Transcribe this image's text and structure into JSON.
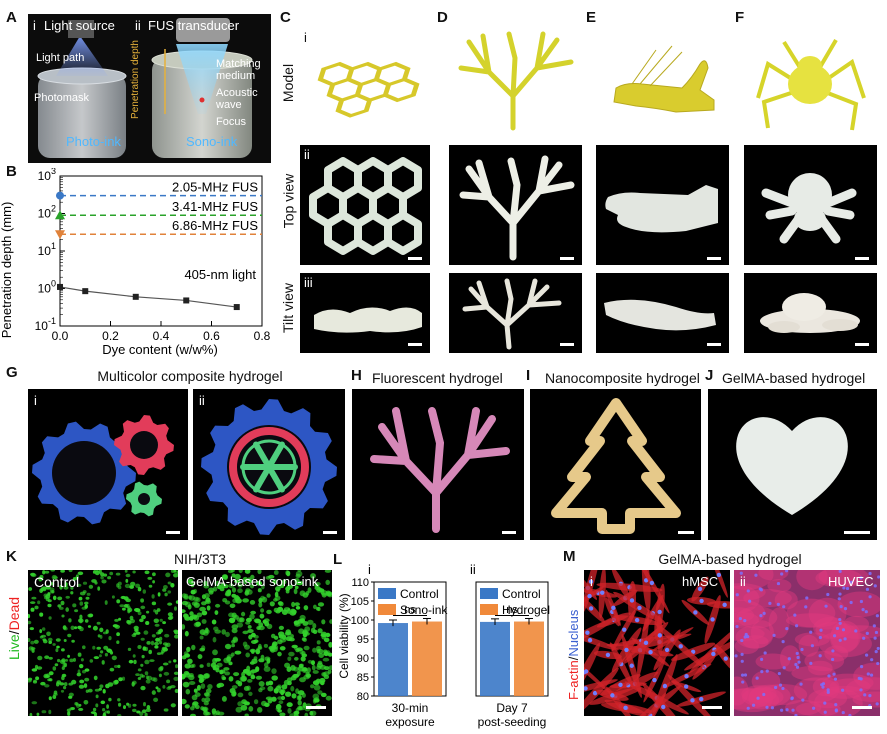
{
  "colors": {
    "hydrogel_white": "#eef0e6",
    "model_yellow": "#ded12c",
    "gear_blue": "#2d56c4",
    "gear_red": "#e23c5a",
    "gear_green": "#4fcf7f",
    "pink": "#d77fb1",
    "gold": "#e3c488",
    "live_green": "#33d12c",
    "fus_blue": "#3a78c6",
    "fus_green": "#2aa32a",
    "fus_orange": "#e0823a"
  },
  "panel_letters": {
    "A": "A",
    "B": "B",
    "C": "C",
    "D": "D",
    "E": "E",
    "F": "F",
    "G": "G",
    "H": "H",
    "I": "I",
    "J": "J",
    "K": "K",
    "L": "L",
    "M": "M"
  },
  "panelA": {
    "i": "i",
    "ii": "ii",
    "light_source": "Light source",
    "fus_transducer": "FUS transducer",
    "light_path": "Light path",
    "photomask": "Photomask",
    "matching_medium": "Matching\nmedium",
    "acoustic_wave": "Acoustic\nwave",
    "focus": "Focus",
    "penetration_depth": "Penetration depth",
    "photo_ink": "Photo-ink",
    "sono_ink": "Sono-ink"
  },
  "rows": {
    "model": "Model",
    "top_view": "Top view",
    "tilt_view": "Tilt view",
    "i": "i",
    "ii": "ii",
    "iii": "iii"
  },
  "panelG": {
    "title": "Multicolor composite hydrogel",
    "i": "i",
    "ii": "ii"
  },
  "panelH": {
    "title": "Fluorescent hydrogel"
  },
  "panelI": {
    "title": "Nanocomposite hydrogel"
  },
  "panelJ": {
    "title": "GelMA-based hydrogel"
  },
  "panelK": {
    "title": "NIH/3T3",
    "control": "Control",
    "sono": "GelMA-based sono-ink",
    "live": "Live",
    "slash": "/",
    "dead": "Dead"
  },
  "panelM": {
    "title": "GelMA-based hydrogel",
    "i": "i",
    "ii": "ii",
    "hmsc": "hMSC",
    "huvec": "HUVEC",
    "factin": "F-actin",
    "slash": "/",
    "nucleus": "Nucleus"
  },
  "chart_data": [
    {
      "type": "scatter",
      "panel": "B",
      "xlabel": "Dye content (w/w%)",
      "ylabel": "Penetration depth (mm)",
      "xlim": [
        0,
        0.8
      ],
      "ylim": [
        0.1,
        1000
      ],
      "yscale": "log",
      "x_ticks": [
        "0.0",
        "0.2",
        "0.4",
        "0.6",
        "0.8"
      ],
      "y_ticks": [
        "10^-1",
        "10^0",
        "10^1",
        "10^2",
        "10^3"
      ],
      "series": [
        {
          "name": "405-nm light",
          "x": [
            0,
            0.1,
            0.3,
            0.5,
            0.7
          ],
          "y": [
            1.1,
            0.85,
            0.6,
            0.48,
            0.32
          ],
          "color": "#222222"
        },
        {
          "name": "2.05-MHz FUS",
          "x": [
            0
          ],
          "y": [
            300
          ],
          "color": "#3a78c6",
          "line": "dashed",
          "marker": "circle"
        },
        {
          "name": "3.41-MHz FUS",
          "x": [
            0
          ],
          "y": [
            90
          ],
          "color": "#2aa32a",
          "line": "dashed",
          "marker": "triangle-up"
        },
        {
          "name": "6.86-MHz FUS",
          "x": [
            0
          ],
          "y": [
            28
          ],
          "color": "#e0823a",
          "line": "dashed",
          "marker": "triangle-down"
        }
      ]
    },
    {
      "type": "bar",
      "panel": "L-i",
      "subpanel": "i",
      "ylabel": "Cell viability (%)",
      "ylim": [
        80,
        110
      ],
      "y_ticks": [
        "80",
        "85",
        "90",
        "95",
        "100",
        "105",
        "110"
      ],
      "categories": [
        "30-min\nexposure"
      ],
      "series": [
        {
          "name": "Control",
          "values": [
            99.2
          ],
          "color": "#3a78c6"
        },
        {
          "name": "Sono-ink",
          "values": [
            99.6
          ],
          "color": "#f0893a"
        }
      ],
      "annotation": "ns"
    },
    {
      "type": "bar",
      "panel": "L-ii",
      "subpanel": "ii",
      "ylim": [
        80,
        110
      ],
      "categories": [
        "Day 7\npost-seeding"
      ],
      "series": [
        {
          "name": "Control",
          "values": [
            99.5
          ],
          "color": "#3a78c6"
        },
        {
          "name": "Hydrogel",
          "values": [
            99.6
          ],
          "color": "#f0893a"
        }
      ],
      "annotation": "ns"
    }
  ]
}
